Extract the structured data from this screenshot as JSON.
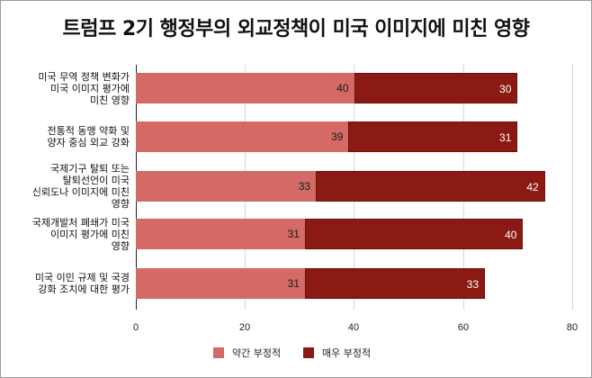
{
  "title": "트럼프 2기 행정부의 외교정책이 미국 이미지에 미친 영향",
  "chart_data": {
    "type": "bar",
    "orientation": "horizontal",
    "stacked": true,
    "title": "트럼프 2기 행정부의 외교정책이 미국 이미지에 미친 영향",
    "xlabel": "",
    "ylabel": "",
    "xlim": [
      0,
      80
    ],
    "x_ticks": [
      0,
      20,
      40,
      60,
      80
    ],
    "grid": true,
    "legend_position": "bottom",
    "categories": [
      "미국 무역 정책 변화가 미국 이미지 평가에 미친 영향",
      "전통적 동맹 약화 및 양자 중심 외교 강화",
      "국제기구 탈퇴 또는 탈퇴선언이 미국 신뢰도나 이미지에 미친 영향",
      "국제개발처 폐쇄가 미국 이미지 평가에 미친 영향",
      "미국 이민 규제 및 국경 강화 조치에 대한 평가"
    ],
    "series": [
      {
        "name": "약간 부정적",
        "color": "#d46a65",
        "values": [
          40,
          39,
          33,
          31,
          31
        ]
      },
      {
        "name": "매우 부정적",
        "color": "#8b1a14",
        "values": [
          30,
          31,
          42,
          40,
          33
        ]
      }
    ]
  },
  "labels": {
    "cat0": [
      "미국 무역 정책 변화가",
      "미국 이미지 평가에",
      "미친 영향"
    ],
    "cat1": [
      "전통적 동맹 약화 및",
      "양자 중심 외교 강화"
    ],
    "cat2": [
      "국제기구 탈퇴 또는",
      "탈퇴선언이 미국",
      "신뢰도나 이미지에 미친",
      "영향"
    ],
    "cat3": [
      "국제개발처 폐쇄가 미국",
      "이미지 평가에 미친",
      "영향"
    ],
    "cat4": [
      "미국 이민 규제 및 국경",
      "강화 조치에 대한 평가"
    ]
  },
  "ticks": [
    "0",
    "20",
    "40",
    "60",
    "80"
  ],
  "legend": {
    "s1": "약간 부정적",
    "s2": "매우 부정적"
  }
}
